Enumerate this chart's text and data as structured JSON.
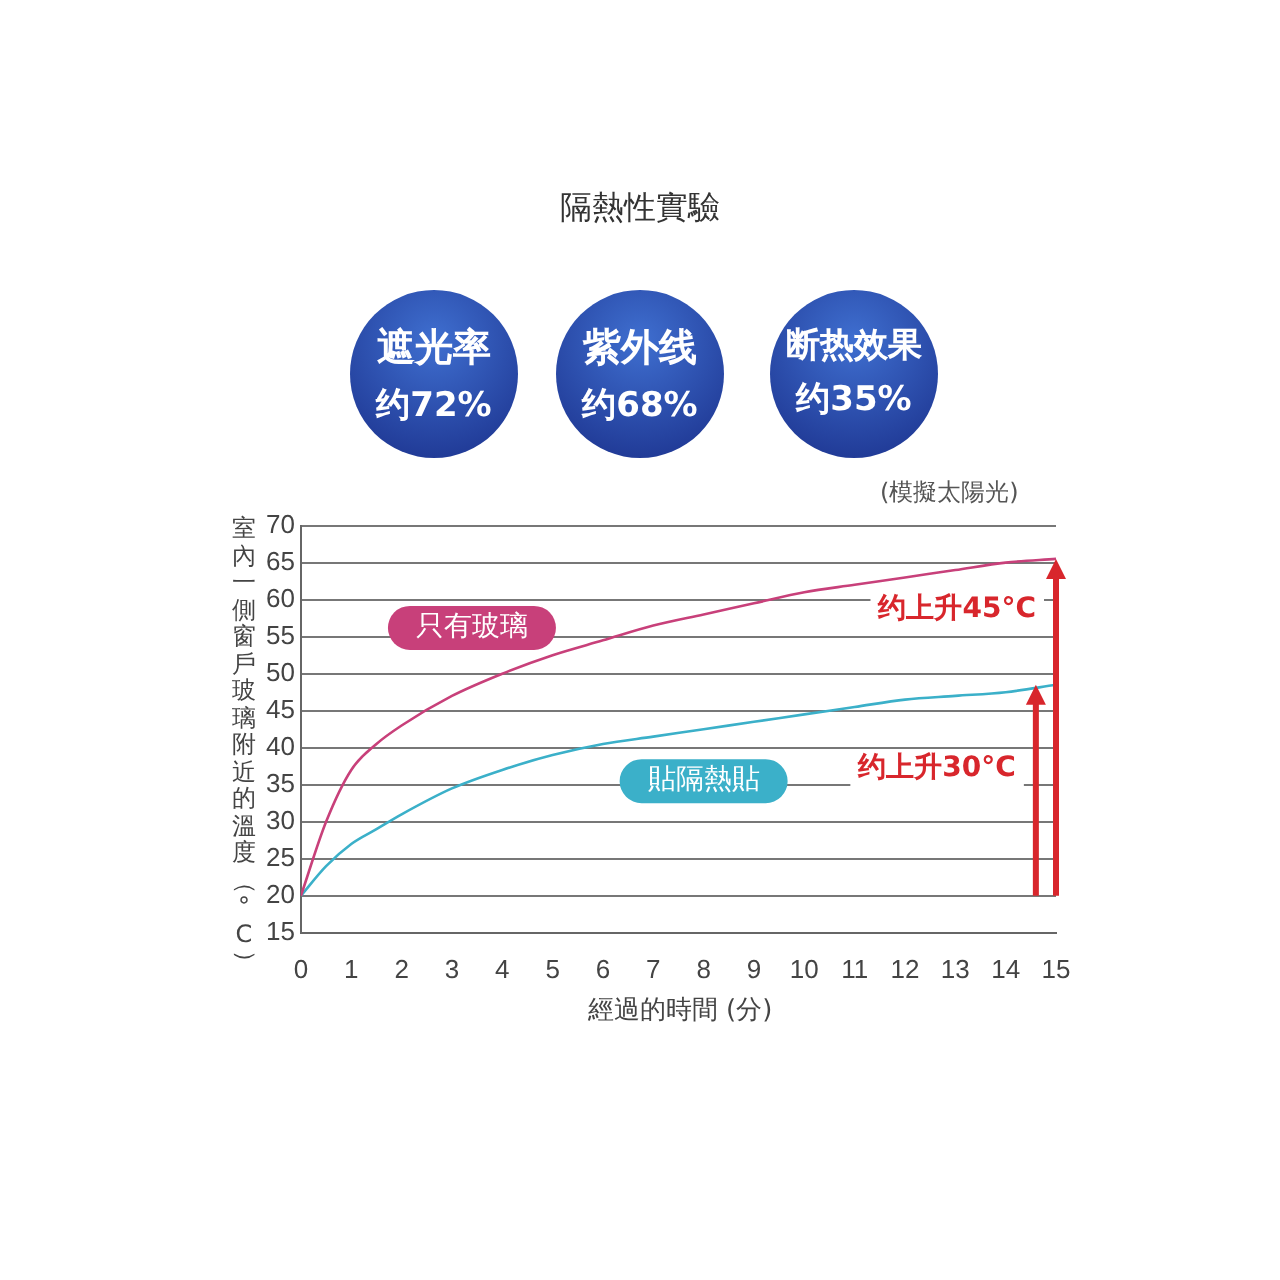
{
  "chart_data": {
    "type": "line",
    "title": "隔熱性實驗",
    "xlabel": "經過的時間 (分)",
    "ylabel": "室內一側窗戶玻璃附近的溫度（°C）",
    "x": [
      0,
      0.5,
      1,
      1.5,
      2,
      3,
      4,
      5,
      6,
      7,
      8,
      9,
      10,
      11,
      12,
      13,
      14,
      15
    ],
    "series": [
      {
        "name": "只有玻璃",
        "color": "#c8407a",
        "values": [
          20,
          30,
          37,
          40.5,
          43,
          47,
          50,
          52.5,
          54.5,
          56.5,
          58,
          59.5,
          61,
          62,
          63,
          64,
          65,
          65.5
        ]
      },
      {
        "name": "貼隔熱貼",
        "color": "#3bb0c9",
        "values": [
          20,
          24,
          27,
          29,
          31,
          34.5,
          37,
          39,
          40.5,
          41.5,
          42.5,
          43.5,
          44.5,
          45.5,
          46.5,
          47,
          47.5,
          48.5
        ]
      }
    ],
    "xlim": [
      0,
      15
    ],
    "xticks": [
      0,
      1,
      2,
      3,
      4,
      5,
      6,
      7,
      8,
      9,
      10,
      11,
      12,
      13,
      14,
      15
    ],
    "ylim": [
      15,
      70
    ],
    "yticks": [
      15,
      20,
      25,
      30,
      35,
      40,
      45,
      50,
      55,
      60,
      65,
      70
    ],
    "grid": "y",
    "legend": false,
    "marker": "none",
    "line_style": "solid",
    "annotations": [
      "遮光率",
      "约72%",
      "紫外线",
      "约68%",
      "断热效果",
      "约35%",
      "(模擬太陽光)",
      {
        "text": "约上升45°C",
        "x": 15,
        "y": 65.5
      },
      {
        "text": "约上升30°C",
        "x": 14.6,
        "y": 48.5
      }
    ]
  }
}
